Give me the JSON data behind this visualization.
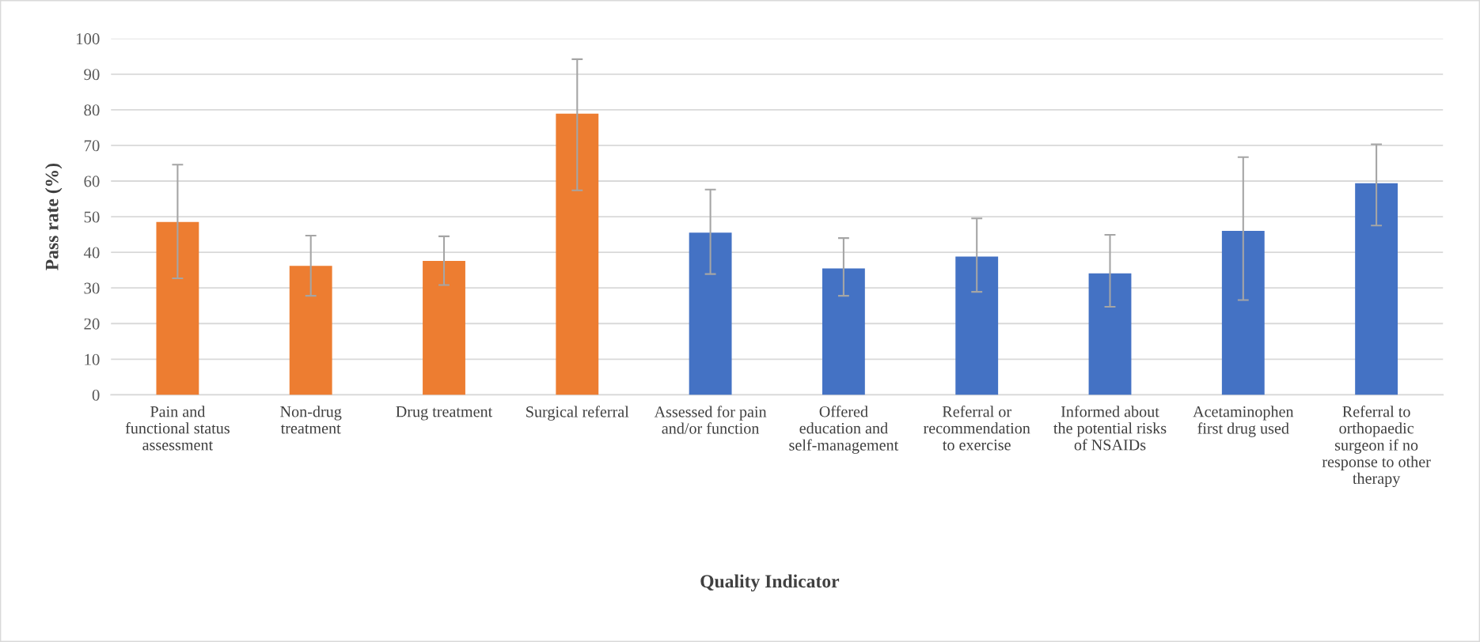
{
  "chart_data": {
    "type": "bar",
    "xlabel": "Quality Indicator",
    "ylabel": "Pass rate (%)",
    "categories": [
      "Pain and\nfunctional status\nassessment",
      "Non-drug\ntreatment",
      "Drug treatment",
      "Surgical referral",
      "Assessed for pain\nand/or function",
      "Offered\neducation and\nself-management",
      "Referral or\nrecommendation\nto exercise",
      "Informed about\nthe potential risks\nof NSAIDs",
      "Acetaminophen\nfirst drug used",
      "Referral to\northopaedic\nsurgeon if no\nresponse to other\ntherapy"
    ],
    "values": [
      48.5,
      36.2,
      37.6,
      78.9,
      45.5,
      35.5,
      38.8,
      34.1,
      46.0,
      59.4
    ],
    "colors": [
      "#ed7d31",
      "#ed7d31",
      "#ed7d31",
      "#ed7d31",
      "#4472c4",
      "#4472c4",
      "#4472c4",
      "#4472c4",
      "#4472c4",
      "#4472c4"
    ],
    "errors": [
      [
        32.7,
        64.6
      ],
      [
        27.8,
        44.7
      ],
      [
        30.8,
        44.5
      ],
      [
        57.4,
        94.2
      ],
      [
        33.9,
        57.6
      ],
      [
        27.8,
        44.0
      ],
      [
        28.9,
        49.5
      ],
      [
        24.7,
        44.9
      ],
      [
        26.6,
        66.7
      ],
      [
        47.5,
        70.3
      ]
    ],
    "ylim": [
      0,
      100
    ],
    "yticks": [
      0,
      10,
      20,
      30,
      40,
      50,
      60,
      70,
      80,
      90,
      100
    ],
    "grid": "y"
  }
}
